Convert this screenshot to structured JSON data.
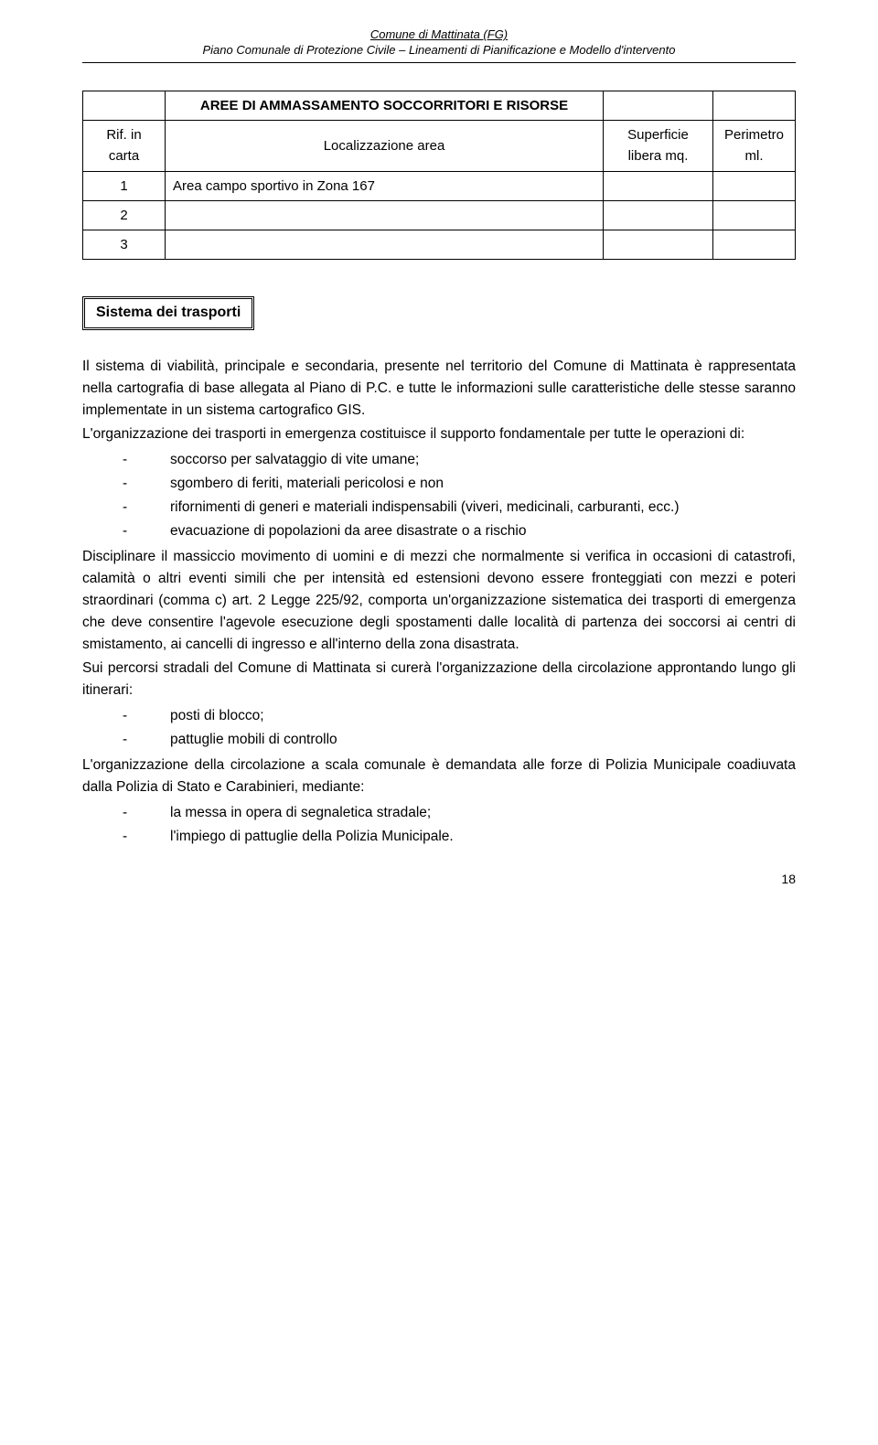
{
  "header": {
    "line1": "Comune di Mattinata (FG)",
    "line2": "Piano Comunale di Protezione Civile – Lineamenti di Pianificazione e Modello d'intervento"
  },
  "table": {
    "title": "AREE DI AMMASSAMENTO SOCCORRITORI E RISORSE",
    "col_rif": "Rif. in carta",
    "col_loc": "Localizzazione area",
    "col_sup": "Superficie libera mq.",
    "col_per": "Perimetro ml.",
    "rows": [
      {
        "n": "1",
        "loc": "Area campo sportivo in Zona 167",
        "sup": "",
        "per": ""
      },
      {
        "n": "2",
        "loc": "",
        "sup": "",
        "per": ""
      },
      {
        "n": "3",
        "loc": "",
        "sup": "",
        "per": ""
      }
    ]
  },
  "section_title": "Sistema dei trasporti",
  "p1": "Il sistema di viabilità, principale e secondaria, presente nel territorio del Comune di Mattinata è rappresentata nella cartografia di base allegata al Piano di P.C. e tutte le informazioni sulle caratteristiche delle stesse saranno implementate in un sistema cartografico GIS.",
  "p2": "L'organizzazione dei trasporti in emergenza costituisce il supporto fondamentale per tutte le operazioni di:",
  "list1": {
    "i1": "soccorso per salvataggio di vite umane;",
    "i2": "sgombero di feriti, materiali pericolosi e non",
    "i3": "rifornimenti di generi e materiali indispensabili (viveri, medicinali, carburanti, ecc.)",
    "i4": "evacuazione di popolazioni da aree disastrate o a rischio"
  },
  "p3": "Disciplinare il massiccio movimento di uomini e di mezzi che normalmente si verifica in occasioni di catastrofi, calamità o altri eventi simili che per intensità ed estensioni devono essere fronteggiati con mezzi e poteri straordinari (comma c) art. 2 Legge 225/92, comporta un'organizzazione sistematica dei trasporti di emergenza che deve consentire l'agevole esecuzione degli spostamenti dalle località di partenza dei soccorsi ai centri di smistamento, ai cancelli di ingresso e all'interno della zona disastrata.",
  "p4": "Sui percorsi stradali del Comune di Mattinata si curerà l'organizzazione della circolazione approntando lungo gli itinerari:",
  "list2": {
    "i1": "posti di blocco;",
    "i2": "pattuglie mobili di controllo"
  },
  "p5": "L'organizzazione della circolazione a scala comunale è demandata alle forze di Polizia Municipale coadiuvata dalla Polizia di Stato e Carabinieri, mediante:",
  "list3": {
    "i1": "la messa in opera di segnaletica stradale;",
    "i2": "l'impiego di pattuglie della Polizia Municipale."
  },
  "page_number": "18"
}
